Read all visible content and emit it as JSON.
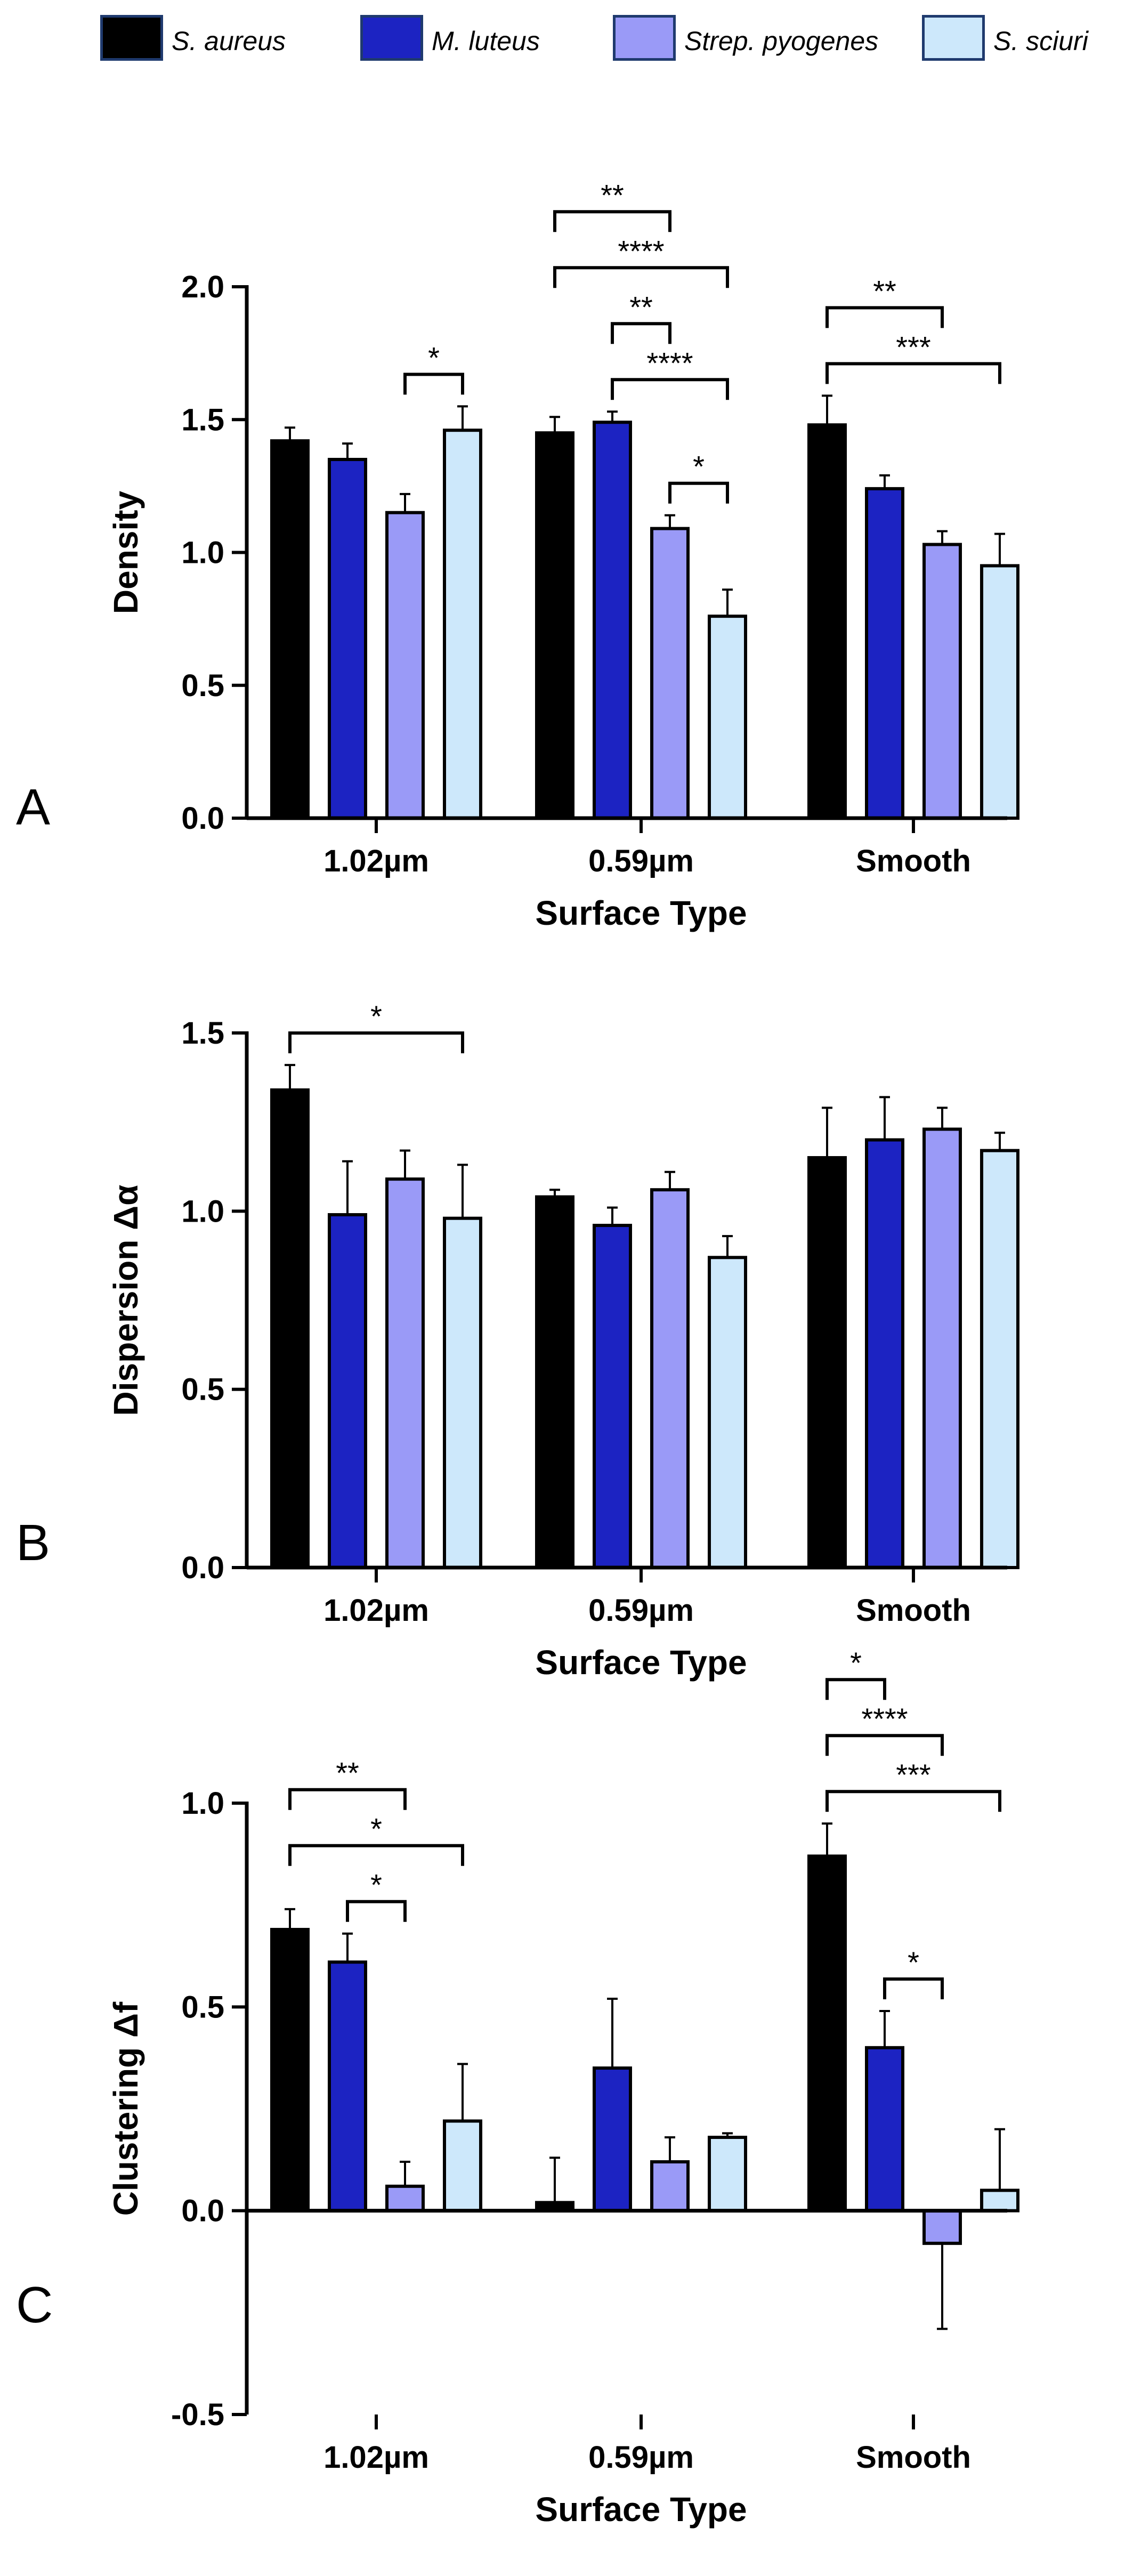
{
  "legend": [
    {
      "label": "S. aureus",
      "color": "#000000"
    },
    {
      "label": "M. luteus",
      "color": "#1c23c2"
    },
    {
      "label": "Strep. pyogenes",
      "color": "#9a9af7"
    },
    {
      "label": "S. sciuri",
      "color": "#cde8fb"
    }
  ],
  "chart_data": [
    {
      "panel_letter": "A",
      "type": "bar",
      "categories": [
        "1.02µm",
        "0.59µm",
        "Smooth"
      ],
      "series": [
        {
          "name": "S. aureus",
          "values": [
            1.42,
            1.45,
            1.48
          ],
          "errors": [
            0.05,
            0.06,
            0.11
          ]
        },
        {
          "name": "M. luteus",
          "values": [
            1.35,
            1.49,
            1.24
          ],
          "errors": [
            0.06,
            0.04,
            0.05
          ]
        },
        {
          "name": "Strep. pyogenes",
          "values": [
            1.15,
            1.09,
            1.03
          ],
          "errors": [
            0.07,
            0.05,
            0.05
          ]
        },
        {
          "name": "S. sciuri",
          "values": [
            1.46,
            0.76,
            0.95
          ],
          "errors": [
            0.09,
            0.1,
            0.12
          ]
        }
      ],
      "xlabel": "Surface Type",
      "ylabel": "Density",
      "ylim": [
        0,
        2.0
      ],
      "yticks": [
        "0.0",
        "0.5",
        "1.0",
        "1.5",
        "2.0"
      ],
      "significance": [
        {
          "group": 0,
          "from": 2,
          "to": 3,
          "label": "*"
        },
        {
          "group": 1,
          "from": 2,
          "to": 3,
          "label": "*"
        },
        {
          "group": 1,
          "from": 1,
          "to": 3,
          "label": "****"
        },
        {
          "group": 1,
          "from": 1,
          "to": 2,
          "label": "**"
        },
        {
          "group": 1,
          "from": 0,
          "to": 3,
          "label": "****"
        },
        {
          "group": 1,
          "from": 0,
          "to": 2,
          "label": "**"
        },
        {
          "group": 2,
          "from": 0,
          "to": 3,
          "label": "***"
        },
        {
          "group": 2,
          "from": 0,
          "to": 2,
          "label": "**"
        }
      ]
    },
    {
      "panel_letter": "B",
      "type": "bar",
      "categories": [
        "1.02µm",
        "0.59µm",
        "Smooth"
      ],
      "series": [
        {
          "name": "S. aureus",
          "values": [
            1.34,
            1.04,
            1.15
          ],
          "errors": [
            0.07,
            0.02,
            0.14
          ]
        },
        {
          "name": "M. luteus",
          "values": [
            0.99,
            0.96,
            1.2
          ],
          "errors": [
            0.15,
            0.05,
            0.12
          ]
        },
        {
          "name": "Strep. pyogenes",
          "values": [
            1.09,
            1.06,
            1.23
          ],
          "errors": [
            0.08,
            0.05,
            0.06
          ]
        },
        {
          "name": "S. sciuri",
          "values": [
            0.98,
            0.87,
            1.17
          ],
          "errors": [
            0.15,
            0.06,
            0.05
          ]
        }
      ],
      "xlabel": "Surface Type",
      "ylabel": "Dispersion Δα",
      "ylim": [
        0,
        1.5
      ],
      "yticks": [
        "0.0",
        "0.5",
        "1.0",
        "1.5"
      ],
      "significance": [
        {
          "group": 0,
          "from": 0,
          "to": 3,
          "label": "*"
        }
      ]
    },
    {
      "panel_letter": "C",
      "type": "bar",
      "categories": [
        "1.02µm",
        "0.59µm",
        "Smooth"
      ],
      "series": [
        {
          "name": "S. aureus",
          "values": [
            0.69,
            0.02,
            0.87
          ],
          "errors": [
            0.05,
            0.11,
            0.08
          ]
        },
        {
          "name": "M. luteus",
          "values": [
            0.61,
            0.35,
            0.4
          ],
          "errors": [
            0.07,
            0.17,
            0.09
          ]
        },
        {
          "name": "Strep. pyogenes",
          "values": [
            0.06,
            0.12,
            -0.08
          ],
          "errors": [
            0.06,
            0.06,
            0.21
          ]
        },
        {
          "name": "S. sciuri",
          "values": [
            0.22,
            0.18,
            0.05
          ],
          "errors": [
            0.14,
            0.01,
            0.15
          ]
        }
      ],
      "xlabel": "Surface Type",
      "ylabel": "Clustering Δf",
      "ylim": [
        -0.5,
        1.0
      ],
      "yticks": [
        "-0.5",
        "0.0",
        "0.5",
        "1.0"
      ],
      "significance": [
        {
          "group": 0,
          "from": 1,
          "to": 2,
          "label": "*"
        },
        {
          "group": 0,
          "from": 0,
          "to": 3,
          "label": "*"
        },
        {
          "group": 0,
          "from": 0,
          "to": 2,
          "label": "**"
        },
        {
          "group": 2,
          "from": 1,
          "to": 2,
          "label": "*"
        },
        {
          "group": 2,
          "from": 0,
          "to": 3,
          "label": "***"
        },
        {
          "group": 2,
          "from": 0,
          "to": 2,
          "label": "****"
        },
        {
          "group": 2,
          "from": 0,
          "to": 1,
          "label": "*"
        }
      ]
    }
  ]
}
